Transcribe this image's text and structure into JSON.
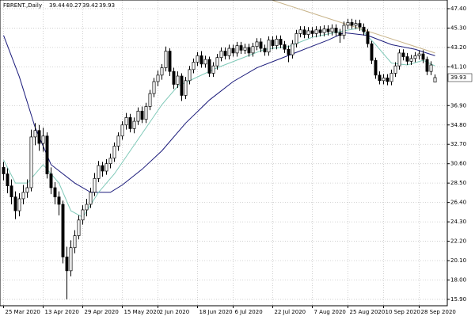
{
  "chart_data": {
    "type": "candlestick",
    "title": "FBRENT.,Daily",
    "categories": [
      "25 Mar 2020",
      null,
      null,
      null,
      null,
      null,
      null,
      null,
      null,
      null,
      "13 Apr 2020",
      null,
      null,
      null,
      null,
      null,
      null,
      null,
      null,
      null,
      "29 Apr 2020",
      null,
      null,
      null,
      null,
      null,
      null,
      null,
      null,
      null,
      "15 May 2020",
      null,
      null,
      null,
      null,
      null,
      null,
      null,
      null,
      "2 Jun 2020",
      null,
      null,
      null,
      null,
      null,
      null,
      null,
      null,
      null,
      "18 Jun 2020",
      null,
      null,
      null,
      null,
      null,
      null,
      null,
      null,
      "6 Jul 2020",
      null,
      null,
      null,
      null,
      null,
      null,
      null,
      null,
      null,
      "22 Jul 2020",
      null,
      null,
      null,
      null,
      null,
      null,
      null,
      null,
      null,
      "7 Aug 2020",
      null,
      null,
      null,
      null,
      null,
      null,
      null,
      null,
      "25 Aug 2020",
      null,
      null,
      null,
      null,
      null,
      null,
      null,
      null,
      "10 Sep 2020",
      null,
      null,
      null,
      null,
      null,
      null,
      null,
      null,
      "28 Sep 2020",
      null,
      null,
      null,
      null
    ],
    "open": [
      30.2,
      29.5,
      28.2,
      27,
      25.5,
      26.8,
      27.5,
      28,
      33.5,
      34.2,
      32.8,
      33.6,
      29.5,
      28,
      27,
      26.2,
      20.5,
      19,
      21.5,
      22.8,
      24.5,
      25.6,
      26.2,
      27.5,
      29,
      30.4,
      29.8,
      30.6,
      31.2,
      32.5,
      33.6,
      34.8,
      35.6,
      34.4,
      35.2,
      36.3,
      35.4,
      36.8,
      38.2,
      39.5,
      40.2,
      41,
      42.8,
      40.6,
      39.2,
      40.1,
      38,
      39.6,
      40.8,
      41.6,
      42.3,
      41.4,
      41.9,
      40.4,
      41.2,
      42.1,
      42.8,
      42.3,
      43.1,
      42.6,
      43.4,
      42.9,
      43.2,
      42.6,
      43.3,
      43.8,
      43.1,
      42.7,
      44,
      43.4,
      44.1,
      43.5,
      43,
      42.4,
      43.6,
      44.7,
      45.1,
      44.6,
      45,
      44.7,
      45.1,
      44.8,
      45.2,
      44.9,
      45.3,
      44.8,
      44.5,
      45.6,
      45.9,
      45.6,
      45.8,
      45.4,
      44.9,
      43.6,
      41.8,
      40.2,
      39.6,
      39.9,
      39.5,
      40.4,
      41.2,
      42.6,
      42.2,
      41.7,
      42,
      42.3,
      42.5,
      41.9,
      40.6,
      39.44
    ],
    "high": [
      30.8,
      30.1,
      28.9,
      27.6,
      27.4,
      28.3,
      28.9,
      34.3,
      35,
      34.8,
      34.5,
      34,
      30.2,
      28.6,
      27.6,
      26.6,
      21.6,
      22.3,
      23.4,
      25,
      26.1,
      26.8,
      28,
      29.6,
      30.9,
      30.8,
      31.1,
      31.7,
      32.9,
      34,
      35.2,
      36.1,
      36,
      35.6,
      36.7,
      36.8,
      37.2,
      38.6,
      39.9,
      40.7,
      41.4,
      43.3,
      43.1,
      41,
      40.6,
      40.4,
      40,
      41.2,
      42,
      42.7,
      42.8,
      42.3,
      42.2,
      41.6,
      42.5,
      43.2,
      43.2,
      43.5,
      43.5,
      43.8,
      43.8,
      43.6,
      43.6,
      43.7,
      44.2,
      44.2,
      43.5,
      44.4,
      44.4,
      44.5,
      44.5,
      43.9,
      43.4,
      44,
      45.1,
      45.5,
      45.5,
      45.4,
      45.4,
      45.5,
      45.5,
      45.6,
      45.6,
      45.7,
      45.7,
      45.2,
      46,
      46.3,
      46.3,
      46.2,
      46.2,
      45.8,
      45.2,
      43.9,
      42.1,
      40.6,
      40.3,
      40.3,
      40.8,
      41.6,
      43,
      43,
      42.6,
      42.4,
      42.7,
      42.9,
      42.9,
      42.2,
      41.7,
      40.27
    ],
    "low": [
      28.8,
      27.4,
      26.2,
      24.6,
      24.9,
      26.2,
      26.9,
      27.6,
      32.6,
      32,
      31.9,
      29,
      27.3,
      26.2,
      25,
      19.8,
      15.9,
      18.4,
      20.9,
      22.4,
      24,
      24.9,
      25.8,
      27.1,
      28.6,
      29.2,
      29.4,
      30.1,
      30.8,
      32,
      33.2,
      34.3,
      34,
      33.9,
      34.8,
      35,
      35,
      36.4,
      37.8,
      39,
      39.7,
      40.6,
      40.1,
      38.7,
      38.8,
      37.4,
      37.6,
      39.2,
      40.4,
      41.2,
      41,
      41,
      40,
      40,
      40.8,
      41.7,
      41.9,
      41.9,
      42.2,
      42.2,
      42.5,
      42.5,
      42.2,
      42.2,
      42.9,
      42.7,
      42.3,
      42.3,
      43,
      43,
      43.1,
      42.6,
      41.6,
      42,
      43.2,
      44.3,
      44.2,
      44.2,
      44.3,
      44.3,
      44.4,
      44.4,
      44.5,
      44.5,
      44.4,
      43.7,
      44.1,
      45.2,
      45.2,
      45.2,
      45,
      44.5,
      43.2,
      41.4,
      39.8,
      39.2,
      39.2,
      39.1,
      39.1,
      40,
      40.8,
      41.8,
      41.3,
      41.3,
      41.6,
      41.9,
      41.5,
      40.2,
      40.2,
      39.42
    ],
    "close": [
      29.5,
      28.2,
      27,
      25.5,
      26.8,
      27.5,
      28,
      33.5,
      34.2,
      32.8,
      33.6,
      29.5,
      28,
      27,
      26.2,
      20.5,
      19,
      21.5,
      22.8,
      24.5,
      25.6,
      26.2,
      27.5,
      29,
      30.4,
      29.8,
      30.6,
      31.2,
      32.5,
      33.6,
      34.8,
      35.6,
      34.4,
      35.2,
      36.3,
      35.4,
      36.8,
      38.2,
      39.5,
      40.2,
      41,
      42.8,
      40.6,
      39.2,
      40.1,
      38,
      39.6,
      40.8,
      41.6,
      42.3,
      41.4,
      41.9,
      40.4,
      41.2,
      42.1,
      42.8,
      42.3,
      43.1,
      42.6,
      43.4,
      42.9,
      43.2,
      42.6,
      43.3,
      43.8,
      43.1,
      42.7,
      44,
      43.4,
      44.1,
      43.5,
      43,
      42.4,
      43.6,
      44.7,
      45.1,
      44.6,
      45,
      44.7,
      45.1,
      44.8,
      45.2,
      44.9,
      45.3,
      44.8,
      44.5,
      45.6,
      45.9,
      45.6,
      45.8,
      45.4,
      44.9,
      43.6,
      41.8,
      40.2,
      39.6,
      39.9,
      39.5,
      40.4,
      41.2,
      42.6,
      42.2,
      41.7,
      42,
      42.3,
      42.5,
      41.9,
      40.6,
      41.3,
      39.93
    ],
    "lines": [
      {
        "color": "#1a1a7a",
        "x": [
          0,
          4,
          8,
          12,
          18,
          22,
          27,
          30,
          35,
          40,
          46,
          52,
          58,
          64,
          70,
          76,
          82,
          86,
          92,
          98,
          104,
          109
        ],
        "values": [
          44.5,
          40,
          34.5,
          30.5,
          28.5,
          27.5,
          27.5,
          28.3,
          30,
          32,
          35,
          37.5,
          39.5,
          41,
          42,
          43,
          44,
          44.8,
          44.5,
          43.5,
          43,
          42.3
        ]
      },
      {
        "color": "#7fc9b8",
        "x": [
          0,
          3,
          6,
          10,
          14,
          17,
          20,
          24,
          28,
          32,
          36,
          40,
          44,
          48,
          54,
          60,
          66,
          72,
          78,
          86,
          90,
          94,
          98,
          102,
          106,
          109
        ],
        "values": [
          31,
          28.5,
          28.5,
          30.5,
          28.5,
          25.5,
          24.8,
          27.5,
          29.5,
          32,
          34.5,
          37,
          39,
          39.8,
          41,
          42,
          43,
          43.3,
          44.3,
          45,
          45.3,
          43.5,
          41.5,
          41.3,
          41.8,
          41.2
        ]
      },
      {
        "color": "#c8b48a",
        "x": [
          68,
          109
        ],
        "values": [
          48.3,
          42.6
        ]
      }
    ],
    "ylim": [
      15.21,
      48.34
    ],
    "yticks": [
      {
        "value": 47.4,
        "label": "47.40"
      },
      {
        "value": 45.3,
        "label": "45.30"
      },
      {
        "value": 43.2,
        "label": "43.20"
      },
      {
        "value": 41.1,
        "label": "41.10"
      },
      {
        "value": 36.9,
        "label": "36.90"
      },
      {
        "value": 34.8,
        "label": "34.80"
      },
      {
        "value": 32.7,
        "label": "32.70"
      },
      {
        "value": 30.6,
        "label": "30.60"
      },
      {
        "value": 28.5,
        "label": "28.50"
      },
      {
        "value": 26.4,
        "label": "26.40"
      },
      {
        "value": 24.3,
        "label": "24.30"
      },
      {
        "value": 22.2,
        "label": "22.20"
      },
      {
        "value": 20.1,
        "label": "20.10"
      },
      {
        "value": 18,
        "label": "18.00"
      },
      {
        "value": 15.9,
        "label": "15.90"
      }
    ],
    "grid": true,
    "up_color": "#ffffff",
    "down_color": "#000000"
  }
}
